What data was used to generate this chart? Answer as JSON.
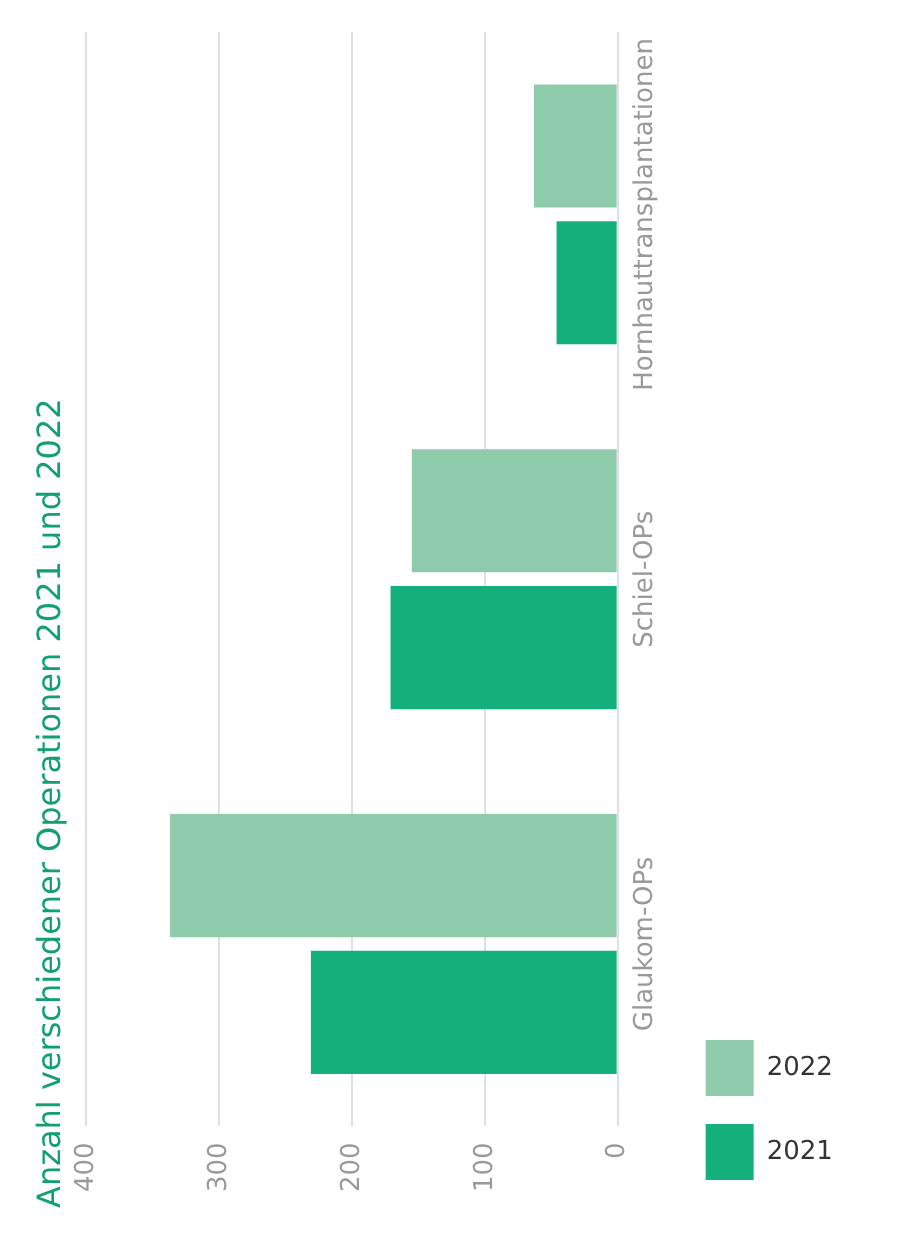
{
  "chart_data": {
    "type": "bar",
    "orientation": "horizontal",
    "title": "Anzahl verschiedener Operationen 2021 und 2022",
    "categories": [
      "Hornhauttransplantationen",
      "Schiel-OPs",
      "Glaukom-OPs"
    ],
    "series": [
      {
        "name": "2022",
        "color": "#8ecbaa",
        "values": [
          63,
          155,
          337
        ]
      },
      {
        "name": "2021",
        "color": "#13b07b",
        "values": [
          46,
          171,
          231
        ]
      }
    ],
    "xlim": [
      400,
      0
    ],
    "xticks": [
      0,
      100,
      200,
      300,
      400
    ],
    "grid": "x",
    "legend": "bottom right"
  }
}
